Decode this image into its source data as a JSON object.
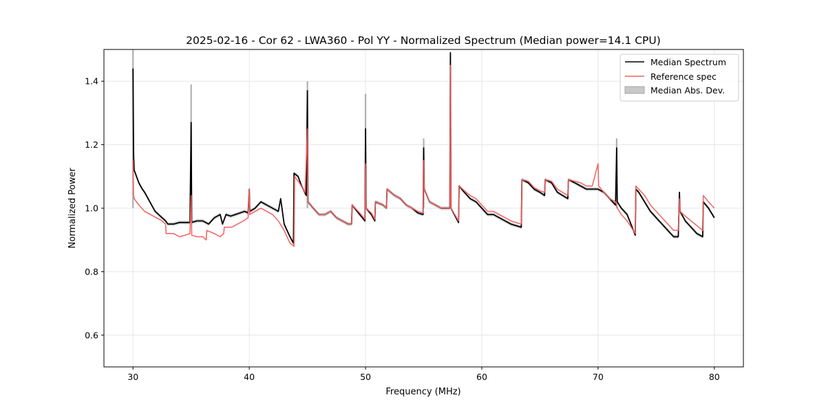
{
  "chart_data": {
    "type": "line",
    "title": "2025-02-16 - Cor 62 - LWA360 - Pol YY - Normalized Spectrum (Median power=14.1 CPU)",
    "xlabel": "Frequency (MHz)",
    "ylabel": "Normalized Power",
    "xlim": [
      27.5,
      82.5
    ],
    "ylim": [
      0.5,
      1.5
    ],
    "xticks": [
      30,
      40,
      50,
      60,
      70,
      80
    ],
    "yticks": [
      0.6,
      0.8,
      1.0,
      1.2,
      1.4
    ],
    "xtick_labels": [
      "30",
      "40",
      "50",
      "60",
      "70",
      "80"
    ],
    "ytick_labels": [
      "0.6",
      "0.8",
      "1.0",
      "1.2",
      "1.4"
    ],
    "grid": true,
    "legend_position": "top-right",
    "legend": [
      "Median Spectrum",
      "Reference spec",
      "Median Abs. Dev."
    ],
    "colors": {
      "median": "#000000",
      "reference": "#f06060",
      "mad_fill": "#b0b0b0",
      "overlap": "#8b0000",
      "grid": "#e6e6e6"
    },
    "mad_halfwidth": 0.006,
    "series": [
      {
        "name": "Median Spectrum",
        "x": [
          30.0,
          30.05,
          30.1,
          30.3,
          30.5,
          30.8,
          31.0,
          31.3,
          31.6,
          31.9,
          32.2,
          32.5,
          32.8,
          33.0,
          33.5,
          34.0,
          34.5,
          34.9,
          35.0,
          35.05,
          35.5,
          36.0,
          36.5,
          37.0,
          37.5,
          37.7,
          38.0,
          38.4,
          38.8,
          39.2,
          39.6,
          39.9,
          40.0,
          40.05,
          40.5,
          41.0,
          41.5,
          42.0,
          42.5,
          42.7,
          43.0,
          43.5,
          43.8,
          43.85,
          44.2,
          44.5,
          44.9,
          45.0,
          45.05,
          45.5,
          46.0,
          46.5,
          47.0,
          47.5,
          48.0,
          48.5,
          48.8,
          48.85,
          49.5,
          49.95,
          50.0,
          50.05,
          50.5,
          50.8,
          50.85,
          51.5,
          51.8,
          51.85,
          52.5,
          53.0,
          53.5,
          54.0,
          54.5,
          54.95,
          55.0,
          55.05,
          55.5,
          56.0,
          56.5,
          57.0,
          57.25,
          57.3,
          57.35,
          58.0,
          58.05,
          58.5,
          59.0,
          59.5,
          60.0,
          60.5,
          61.0,
          61.5,
          62.0,
          62.5,
          63.4,
          63.45,
          64.0,
          64.5,
          65.0,
          65.4,
          65.45,
          66.0,
          66.5,
          67.4,
          67.45,
          68.0,
          68.5,
          69.0,
          69.5,
          70.0,
          70.5,
          71.0,
          71.5,
          71.6,
          71.65,
          72.0,
          72.5,
          73.2,
          73.25,
          73.5,
          74.0,
          74.5,
          75.0,
          75.5,
          76.0,
          76.5,
          76.9,
          77.0,
          77.05,
          77.5,
          78.0,
          78.5,
          79.0,
          79.05,
          79.5,
          80.0
        ],
        "values": [
          1.44,
          1.17,
          1.12,
          1.1,
          1.08,
          1.06,
          1.05,
          1.03,
          1.01,
          0.99,
          0.98,
          0.97,
          0.96,
          0.95,
          0.95,
          0.955,
          0.955,
          0.955,
          1.27,
          0.955,
          0.96,
          0.96,
          0.95,
          0.97,
          0.98,
          0.95,
          0.98,
          0.975,
          0.98,
          0.985,
          0.99,
          0.985,
          1.06,
          0.99,
          1.0,
          1.02,
          1.01,
          1.0,
          0.99,
          1.03,
          0.95,
          0.91,
          0.89,
          1.11,
          1.1,
          1.07,
          1.04,
          1.37,
          1.02,
          1.0,
          0.98,
          0.98,
          0.99,
          0.97,
          0.96,
          0.95,
          0.95,
          1.01,
          0.98,
          0.96,
          1.25,
          1.0,
          0.98,
          0.96,
          1.02,
          1.01,
          1.0,
          1.06,
          1.04,
          1.03,
          1.01,
          1.0,
          0.985,
          0.98,
          1.19,
          1.06,
          1.02,
          1.01,
          1.0,
          1.0,
          1.0,
          1.49,
          1.0,
          0.955,
          1.07,
          1.05,
          1.03,
          1.02,
          1.0,
          0.98,
          0.98,
          0.97,
          0.96,
          0.95,
          0.94,
          1.09,
          1.08,
          1.06,
          1.05,
          1.04,
          1.09,
          1.08,
          1.05,
          1.03,
          1.09,
          1.08,
          1.07,
          1.06,
          1.06,
          1.06,
          1.05,
          1.03,
          1.01,
          1.19,
          1.02,
          1.0,
          0.98,
          0.915,
          1.06,
          1.05,
          1.02,
          0.99,
          0.97,
          0.95,
          0.93,
          0.91,
          0.91,
          1.05,
          0.99,
          0.96,
          0.94,
          0.92,
          0.91,
          1.02,
          1.0,
          0.97
        ]
      },
      {
        "name": "Reference spec",
        "x": [
          30.0,
          30.05,
          30.1,
          30.5,
          31.0,
          31.5,
          32.0,
          32.5,
          32.8,
          32.85,
          33.5,
          34.0,
          34.5,
          34.9,
          35.0,
          35.05,
          35.5,
          36.0,
          36.3,
          36.35,
          37.0,
          37.5,
          37.8,
          37.85,
          38.5,
          39.0,
          39.5,
          39.9,
          40.0,
          40.05,
          40.5,
          41.0,
          41.5,
          42.0,
          42.5,
          43.0,
          43.5,
          43.85,
          43.9,
          44.3,
          44.8,
          45.0,
          45.05,
          45.5,
          46.0,
          46.5,
          47.0,
          47.5,
          48.0,
          48.5,
          48.8,
          48.85,
          49.5,
          49.95,
          50.0,
          50.05,
          50.5,
          50.8,
          50.85,
          51.5,
          51.8,
          51.85,
          52.5,
          53.0,
          53.5,
          54.0,
          54.5,
          54.95,
          55.0,
          55.05,
          55.5,
          56.0,
          56.5,
          57.0,
          57.25,
          57.3,
          57.35,
          58.0,
          58.05,
          58.5,
          59.0,
          59.5,
          60.0,
          60.5,
          61.0,
          61.5,
          62.0,
          62.5,
          63.4,
          63.45,
          64.0,
          64.5,
          65.0,
          65.4,
          65.45,
          66.0,
          66.5,
          67.4,
          67.45,
          68.0,
          68.5,
          69.0,
          69.5,
          70.0,
          70.05,
          70.5,
          71.0,
          71.5,
          71.6,
          71.65,
          72.0,
          72.5,
          73.2,
          73.25,
          73.5,
          74.0,
          74.5,
          75.0,
          75.5,
          76.0,
          76.5,
          76.9,
          77.0,
          77.05,
          77.5,
          78.0,
          78.5,
          79.0,
          79.05,
          79.5,
          80.0
        ],
        "values": [
          1.15,
          1.04,
          1.03,
          1.01,
          0.99,
          0.98,
          0.97,
          0.96,
          0.95,
          0.92,
          0.92,
          0.91,
          0.915,
          0.92,
          1.04,
          0.915,
          0.91,
          0.91,
          0.9,
          0.93,
          0.92,
          0.91,
          0.92,
          0.94,
          0.94,
          0.95,
          0.96,
          0.97,
          1.06,
          0.98,
          0.99,
          1.0,
          0.99,
          0.98,
          0.96,
          0.93,
          0.89,
          0.88,
          1.1,
          1.08,
          1.05,
          1.25,
          1.02,
          1.0,
          0.98,
          0.98,
          0.99,
          0.97,
          0.96,
          0.95,
          0.95,
          1.01,
          0.985,
          0.965,
          1.14,
          1.0,
          0.985,
          0.965,
          1.02,
          1.01,
          1.0,
          1.06,
          1.04,
          1.03,
          1.01,
          1.0,
          0.99,
          0.985,
          1.15,
          1.06,
          1.02,
          1.01,
          1.0,
          1.0,
          1.0,
          1.45,
          1.0,
          0.96,
          1.07,
          1.055,
          1.04,
          1.03,
          1.01,
          0.99,
          0.99,
          0.98,
          0.97,
          0.96,
          0.95,
          1.09,
          1.085,
          1.065,
          1.055,
          1.05,
          1.09,
          1.085,
          1.06,
          1.04,
          1.09,
          1.085,
          1.08,
          1.07,
          1.07,
          1.14,
          1.07,
          1.05,
          1.03,
          1.02,
          1.01,
          1.0,
          0.98,
          0.96,
          0.92,
          1.07,
          1.06,
          1.04,
          1.01,
          0.99,
          0.97,
          0.95,
          0.93,
          0.93,
          1.03,
          0.99,
          0.975,
          0.96,
          0.945,
          0.93,
          1.04,
          1.02,
          1.0
        ]
      }
    ],
    "mad_spikes": [
      {
        "x": 30.0,
        "high": 1.5
      },
      {
        "x": 35.0,
        "high": 1.39
      },
      {
        "x": 45.0,
        "high": 1.4
      },
      {
        "x": 50.0,
        "high": 1.36
      },
      {
        "x": 55.0,
        "high": 1.22
      },
      {
        "x": 71.6,
        "high": 1.22
      }
    ]
  }
}
